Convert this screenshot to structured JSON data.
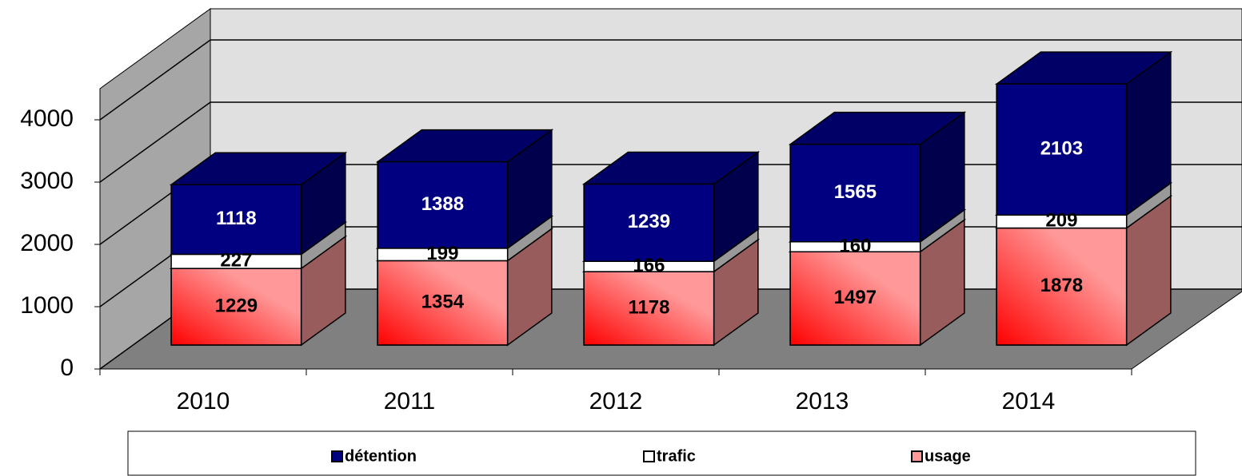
{
  "chart_data": {
    "type": "bar3d_stacked",
    "categories": [
      "2010",
      "2011",
      "2012",
      "2013",
      "2014"
    ],
    "series": [
      {
        "name": "usage",
        "color": "#ff9999",
        "values": [
          1229,
          1354,
          1178,
          1497,
          1878
        ]
      },
      {
        "name": "trafic",
        "color": "#ffffff",
        "values": [
          227,
          199,
          166,
          160,
          209
        ]
      },
      {
        "name": "détention",
        "color": "#000080",
        "values": [
          1118,
          1388,
          1239,
          1565,
          2103
        ]
      }
    ],
    "ylim": [
      0,
      4500
    ],
    "yticks": [
      0,
      1000,
      2000,
      3000,
      4000
    ],
    "grid": true
  }
}
